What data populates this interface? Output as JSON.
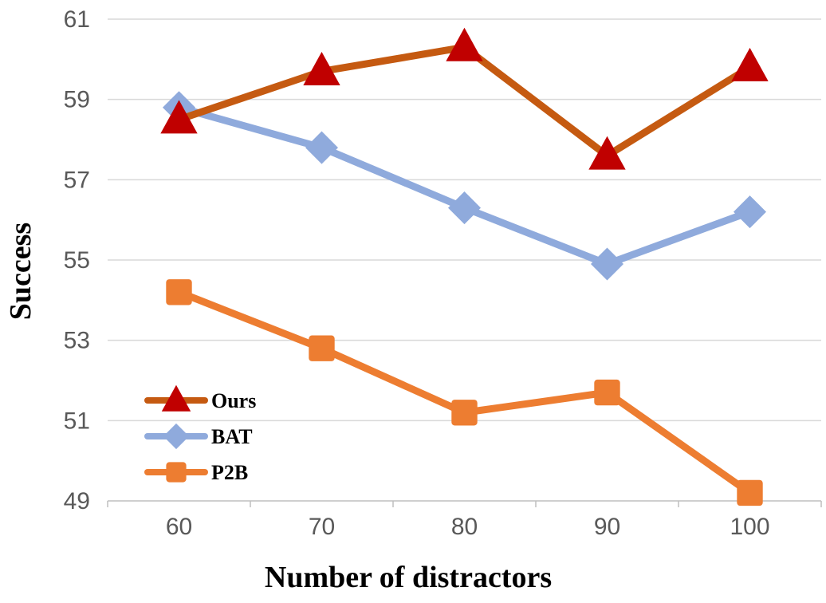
{
  "chart_data": {
    "type": "line",
    "xlabel": "Number of distractors",
    "ylabel": "Success",
    "categories": [
      "60",
      "70",
      "80",
      "90",
      "100"
    ],
    "ylim": [
      49,
      61
    ],
    "yticks": [
      49,
      51,
      53,
      55,
      57,
      59,
      61
    ],
    "grid": "horizontal",
    "legend_position": "bottom-left",
    "series": [
      {
        "name": "Ours",
        "values": [
          58.5,
          59.7,
          60.3,
          57.6,
          59.8
        ],
        "line_color": "#c55a11",
        "marker": "triangle",
        "marker_color": "#c00000"
      },
      {
        "name": "BAT",
        "values": [
          58.8,
          57.8,
          56.3,
          54.9,
          56.2
        ],
        "line_color": "#8faadc",
        "marker": "diamond",
        "marker_color": "#8faadc"
      },
      {
        "name": "P2B",
        "values": [
          54.2,
          52.8,
          51.2,
          51.7,
          49.2
        ],
        "line_color": "#ed7d31",
        "marker": "square",
        "marker_color": "#ed7d31"
      }
    ]
  }
}
